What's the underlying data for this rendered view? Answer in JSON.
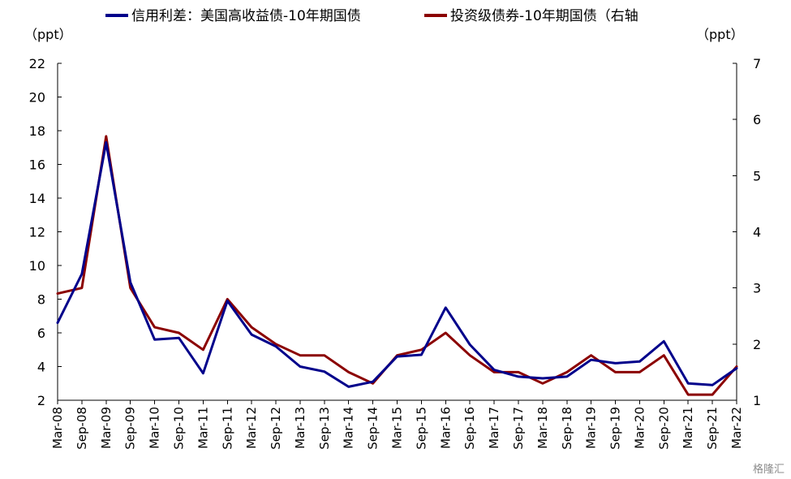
{
  "chart_data": {
    "type": "line",
    "x": [
      "Mar-08",
      "Sep-08",
      "Mar-09",
      "Sep-09",
      "Mar-10",
      "Sep-10",
      "Mar-11",
      "Sep-11",
      "Mar-12",
      "Sep-12",
      "Mar-13",
      "Sep-13",
      "Mar-14",
      "Sep-14",
      "Mar-15",
      "Sep-15",
      "Mar-16",
      "Sep-16",
      "Mar-17",
      "Sep-17",
      "Mar-18",
      "Sep-18",
      "Mar-19",
      "Sep-19",
      "Mar-20",
      "Sep-20",
      "Mar-21",
      "Sep-21",
      "Mar-22"
    ],
    "xtick_labels": [
      "Mar-08",
      "Sep-08",
      "Mar-09",
      "Sep-09",
      "Mar-10",
      "Sep-10",
      "Mar-11",
      "Sep-11",
      "Mar-12",
      "Sep-12",
      "Mar-13",
      "Sep-13",
      "Mar-14",
      "Sep-14",
      "Mar-15",
      "Sep-15",
      "Mar-16",
      "Sep-16",
      "Mar-17",
      "Sep-17",
      "Mar-18",
      "Sep-18",
      "Mar-19",
      "Sep-19",
      "Mar-20",
      "Sep-20",
      "Mar-21",
      "Sep-21",
      "Mar-22"
    ],
    "y_left": {
      "unit": "（ppt）",
      "ylim": [
        2,
        22
      ],
      "ticks": [
        2,
        4,
        6,
        8,
        10,
        12,
        14,
        16,
        18,
        20,
        22
      ]
    },
    "y_right": {
      "unit": "（ppt）",
      "ylim": [
        1,
        7
      ],
      "ticks": [
        1,
        2,
        3,
        4,
        5,
        6,
        7
      ]
    },
    "series": [
      {
        "name": "信用利差：美国高收益债-10年期国债",
        "axis": "left",
        "color": "#00008B",
        "values": [
          6.6,
          9.5,
          17.3,
          9.0,
          5.6,
          5.7,
          3.6,
          7.9,
          5.9,
          5.2,
          4.0,
          3.7,
          2.8,
          3.1,
          4.6,
          4.7,
          7.5,
          5.3,
          3.8,
          3.4,
          3.3,
          3.4,
          4.4,
          4.2,
          4.3,
          5.5,
          3.0,
          2.9,
          3.9
        ]
      },
      {
        "name": "投资级债券-10年期国债（右轴",
        "axis": "right",
        "color": "#8B0000",
        "values": [
          2.9,
          3.0,
          5.7,
          3.0,
          2.3,
          2.2,
          1.9,
          2.8,
          2.3,
          2.0,
          1.8,
          1.8,
          1.5,
          1.3,
          1.8,
          1.9,
          2.2,
          1.8,
          1.5,
          1.5,
          1.3,
          1.5,
          1.8,
          1.5,
          1.5,
          1.8,
          1.1,
          1.1,
          1.6
        ]
      }
    ],
    "legend": "top",
    "grid": false
  },
  "watermark": "格隆汇"
}
